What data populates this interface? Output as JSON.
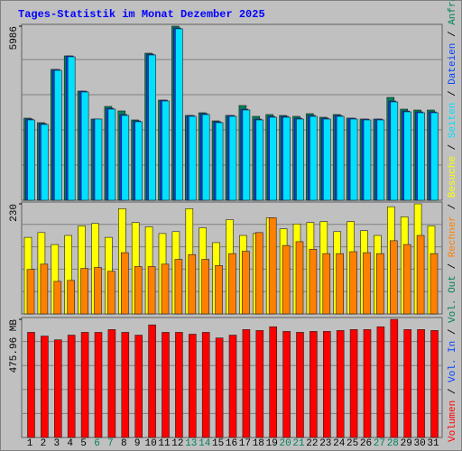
{
  "title": "Tages-Statistik im Monat Dezember 2025",
  "separator": "/",
  "chart_data": [
    {
      "type": "bar",
      "ylim": [
        0,
        5986
      ],
      "yticks": [
        5986
      ],
      "grid": 5,
      "series": [
        {
          "name": "Anfragen",
          "color": "#00805c",
          "values": [
            2823,
            2668,
            4498,
            4963,
            3753,
            2792,
            3226,
            3071,
            2761,
            5056,
            3443,
            5986,
            2916,
            3009,
            2730,
            2916,
            3257,
            2885,
            2947,
            2916,
            2885,
            2978,
            2854,
            2947,
            2823,
            2792,
            2792,
            3536,
            3133,
            3102,
            3102
          ]
        },
        {
          "name": "Dateien",
          "color": "#0040ff",
          "values": [
            2791,
            2636,
            4497,
            4962,
            3752,
            2792,
            3163,
            2946,
            2729,
            5024,
            3442,
            5924,
            2915,
            2977,
            2698,
            2915,
            3132,
            2791,
            2884,
            2884,
            2822,
            2915,
            2822,
            2915,
            2822,
            2791,
            2791,
            3411,
            3070,
            3039,
            3039
          ]
        },
        {
          "name": "Seiten",
          "color": "#00e0ff",
          "values": [
            2761,
            2606,
            4467,
            4932,
            3722,
            2792,
            3133,
            2916,
            2699,
            4994,
            3412,
            5894,
            2885,
            2947,
            2668,
            2885,
            3102,
            2761,
            2854,
            2854,
            2792,
            2885,
            2792,
            2885,
            2792,
            2761,
            2761,
            3381,
            3040,
            3009,
            3009
          ]
        }
      ]
    },
    {
      "type": "bar",
      "ylim": [
        0,
        230
      ],
      "yticks": [
        230
      ],
      "grid": 5,
      "series": [
        {
          "name": "Besuche",
          "color": "#ffff00",
          "values": [
            160,
            170,
            145,
            164,
            184,
            189,
            160,
            220,
            191,
            182,
            168,
            172,
            220,
            180,
            149,
            197,
            164,
            168,
            201,
            178,
            188,
            191,
            193,
            172,
            193,
            174,
            164,
            224,
            203,
            230,
            184
          ]
        },
        {
          "name": "Rechner",
          "color": "#ff8000",
          "values": [
            93,
            104,
            68,
            70,
            95,
            97,
            89,
            128,
            99,
            99,
            104,
            114,
            124,
            114,
            101,
            126,
            131,
            170,
            201,
            143,
            151,
            135,
            126,
            126,
            130,
            128,
            126,
            153,
            145,
            164,
            126
          ]
        }
      ]
    },
    {
      "type": "bar",
      "ylim": [
        0,
        475.96
      ],
      "yticks": [
        {
          "value": 475.96,
          "label": "475.96 MB"
        }
      ],
      "grid": 5,
      "categories": [
        "1",
        "2",
        "3",
        "4",
        "5",
        "6",
        "7",
        "8",
        "9",
        "10",
        "11",
        "12",
        "13",
        "14",
        "15",
        "16",
        "17",
        "18",
        "19",
        "20",
        "21",
        "22",
        "23",
        "24",
        "25",
        "26",
        "27",
        "28",
        "29",
        "30",
        "31"
      ],
      "category_colors": [
        "#000000",
        "#000000",
        "#000000",
        "#000000",
        "#000000",
        "#00805c",
        "#00805c",
        "#000000",
        "#000000",
        "#000000",
        "#000000",
        "#000000",
        "#00805c",
        "#00805c",
        "#000000",
        "#000000",
        "#000000",
        "#000000",
        "#000000",
        "#00805c",
        "#00805c",
        "#000000",
        "#000000",
        "#000000",
        "#000000",
        "#000000",
        "#00805c",
        "#00805c",
        "#000000",
        "#000000",
        "#000000"
      ],
      "series": [
        {
          "name": "Vol. Out",
          "color": "#00805c",
          "values": [
            null,
            null,
            null,
            null,
            null,
            null,
            null,
            null,
            null,
            null,
            null,
            null,
            null,
            null,
            null,
            null,
            null,
            null,
            null,
            null,
            null,
            null,
            null,
            null,
            null,
            null,
            null,
            null,
            null,
            null,
            null
          ]
        },
        {
          "name": "Vol. In",
          "color": "#0040ff",
          "values": [
            null,
            null,
            null,
            null,
            null,
            null,
            null,
            null,
            null,
            null,
            null,
            null,
            null,
            null,
            null,
            null,
            null,
            null,
            null,
            null,
            null,
            null,
            null,
            null,
            null,
            null,
            null,
            null,
            null,
            null,
            null
          ]
        },
        {
          "name": "Volumen",
          "color": "#ff0000",
          "values": [
            423.5,
            408.5,
            393.5,
            412.3,
            423.5,
            423.5,
            434.8,
            423.5,
            412.3,
            453.5,
            423.5,
            423.5,
            416,
            423.5,
            401,
            412.3,
            434.8,
            431,
            446,
            427.3,
            423.5,
            427.3,
            427.3,
            431,
            434.8,
            434.8,
            446,
            475.96,
            434.8,
            434.8,
            431
          ]
        }
      ]
    }
  ]
}
